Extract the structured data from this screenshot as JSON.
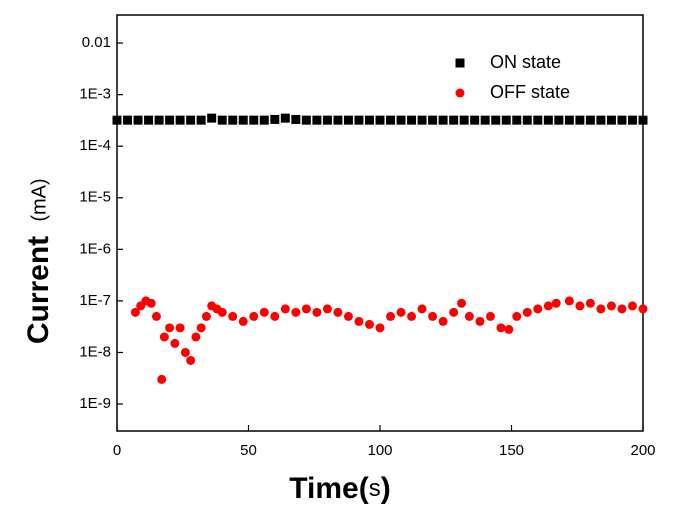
{
  "chart_data": {
    "type": "scatter",
    "x_label": [
      "Time(",
      "s",
      ")"
    ],
    "y_label": [
      "Current",
      "(mA)"
    ],
    "xlim": [
      0,
      200
    ],
    "xticks": [
      0,
      50,
      100,
      150,
      200
    ],
    "ylim": [
      3e-10,
      0.035
    ],
    "log_y": true,
    "yticks": [
      0.01,
      {
        "value": 0.001,
        "label": "1E-3"
      },
      {
        "value": 0.0001,
        "label": "1E-4"
      },
      {
        "value": 1e-05,
        "label": "1E-5"
      },
      {
        "value": 1e-06,
        "label": "1E-6"
      },
      {
        "value": 1e-07,
        "label": "1E-7"
      },
      {
        "value": 1e-08,
        "label": "1E-8"
      },
      {
        "value": 1e-09,
        "label": "1E-9"
      }
    ],
    "legend": "upper right",
    "series": [
      {
        "name": "ON state",
        "color": "#000000",
        "marker": "square",
        "x": [
          0,
          4,
          8,
          12,
          16,
          20,
          24,
          28,
          32,
          36,
          40,
          44,
          48,
          52,
          56,
          60,
          64,
          68,
          72,
          76,
          80,
          84,
          88,
          92,
          96,
          100,
          104,
          108,
          112,
          116,
          120,
          124,
          128,
          132,
          136,
          140,
          144,
          148,
          152,
          156,
          160,
          164,
          168,
          172,
          176,
          180,
          184,
          188,
          192,
          196,
          200
        ],
        "values": [
          0.00032,
          0.00032,
          0.00032,
          0.00032,
          0.00032,
          0.00032,
          0.00032,
          0.00032,
          0.00032,
          0.00035,
          0.00032,
          0.00032,
          0.00032,
          0.00032,
          0.00032,
          0.00033,
          0.00035,
          0.00033,
          0.00032,
          0.00032,
          0.00032,
          0.00032,
          0.00032,
          0.00032,
          0.00032,
          0.00032,
          0.00032,
          0.00032,
          0.00032,
          0.00032,
          0.00032,
          0.00032,
          0.00032,
          0.00032,
          0.00032,
          0.00032,
          0.00032,
          0.00032,
          0.00032,
          0.00032,
          0.00032,
          0.00032,
          0.00032,
          0.00032,
          0.00032,
          0.00032,
          0.00032,
          0.00032,
          0.00032,
          0.00032,
          0.00032
        ]
      },
      {
        "name": "OFF state",
        "color": "#ff0000",
        "marker": "circle",
        "x": [
          7,
          9,
          11,
          13,
          15,
          17,
          18,
          20,
          22,
          24,
          26,
          28,
          30,
          32,
          34,
          36,
          38,
          40,
          44,
          48,
          52,
          56,
          60,
          64,
          68,
          72,
          76,
          80,
          84,
          88,
          92,
          96,
          100,
          104,
          108,
          112,
          116,
          120,
          124,
          128,
          131,
          134,
          138,
          142,
          146,
          149,
          152,
          156,
          160,
          164,
          167,
          172,
          176,
          180,
          184,
          188,
          192,
          196,
          200
        ],
        "values": [
          6e-08,
          8e-08,
          1e-07,
          9e-08,
          5e-08,
          3e-09,
          2e-08,
          3e-08,
          1.5e-08,
          3e-08,
          1e-08,
          7e-09,
          2e-08,
          3e-08,
          5e-08,
          8e-08,
          7e-08,
          6e-08,
          5e-08,
          4e-08,
          5e-08,
          6e-08,
          5e-08,
          7e-08,
          6e-08,
          7e-08,
          6e-08,
          7e-08,
          6e-08,
          5e-08,
          4e-08,
          3.5e-08,
          3e-08,
          5e-08,
          6e-08,
          5e-08,
          7e-08,
          5e-08,
          4e-08,
          6e-08,
          9e-08,
          5e-08,
          4e-08,
          5e-08,
          3e-08,
          2.8e-08,
          5e-08,
          6e-08,
          7e-08,
          8e-08,
          9e-08,
          1e-07,
          8e-08,
          9e-08,
          7e-08,
          8e-08,
          7e-08,
          8e-08,
          7e-08
        ]
      }
    ]
  }
}
